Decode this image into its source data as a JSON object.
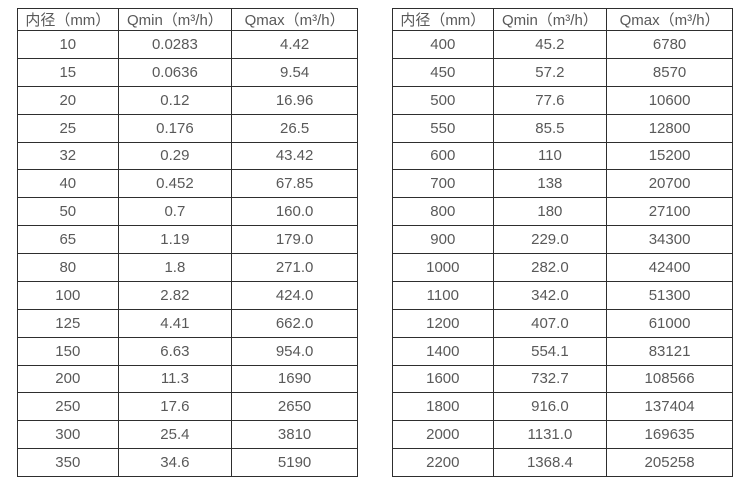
{
  "page": {
    "background_color": "#ffffff",
    "border_color": "#2e2e2e",
    "text_color": "#595959"
  },
  "tables": [
    {
      "name": "flow-rate-table-small-diameters",
      "headers": [
        "内径（mm）",
        "Qmin（m³/h）",
        "Qmax（m³/h）"
      ],
      "rows": [
        [
          "10",
          "0.0283",
          "4.42"
        ],
        [
          "15",
          "0.0636",
          "9.54"
        ],
        [
          "20",
          "0.12",
          "16.96"
        ],
        [
          "25",
          "0.176",
          "26.5"
        ],
        [
          "32",
          "0.29",
          "43.42"
        ],
        [
          "40",
          "0.452",
          "67.85"
        ],
        [
          "50",
          "0.7",
          "160.0"
        ],
        [
          "65",
          "1.19",
          "179.0"
        ],
        [
          "80",
          "1.8",
          "271.0"
        ],
        [
          "100",
          "2.82",
          "424.0"
        ],
        [
          "125",
          "4.41",
          "662.0"
        ],
        [
          "150",
          "6.63",
          "954.0"
        ],
        [
          "200",
          "11.3",
          "1690"
        ],
        [
          "250",
          "17.6",
          "2650"
        ],
        [
          "300",
          "25.4",
          "3810"
        ],
        [
          "350",
          "34.6",
          "5190"
        ]
      ]
    },
    {
      "name": "flow-rate-table-large-diameters",
      "headers": [
        "内径（mm）",
        "Qmin（m³/h）",
        "Qmax（m³/h）"
      ],
      "rows": [
        [
          "400",
          "45.2",
          "6780"
        ],
        [
          "450",
          "57.2",
          "8570"
        ],
        [
          "500",
          "77.6",
          "10600"
        ],
        [
          "550",
          "85.5",
          "12800"
        ],
        [
          "600",
          "110",
          "15200"
        ],
        [
          "700",
          "138",
          "20700"
        ],
        [
          "800",
          "180",
          "27100"
        ],
        [
          "900",
          "229.0",
          "34300"
        ],
        [
          "1000",
          "282.0",
          "42400"
        ],
        [
          "1100",
          "342.0",
          "51300"
        ],
        [
          "1200",
          "407.0",
          "61000"
        ],
        [
          "1400",
          "554.1",
          "83121"
        ],
        [
          "1600",
          "732.7",
          "108566"
        ],
        [
          "1800",
          "916.0",
          "137404"
        ],
        [
          "2000",
          "1131.0",
          "169635"
        ],
        [
          "2200",
          "1368.4",
          "205258"
        ]
      ]
    }
  ]
}
